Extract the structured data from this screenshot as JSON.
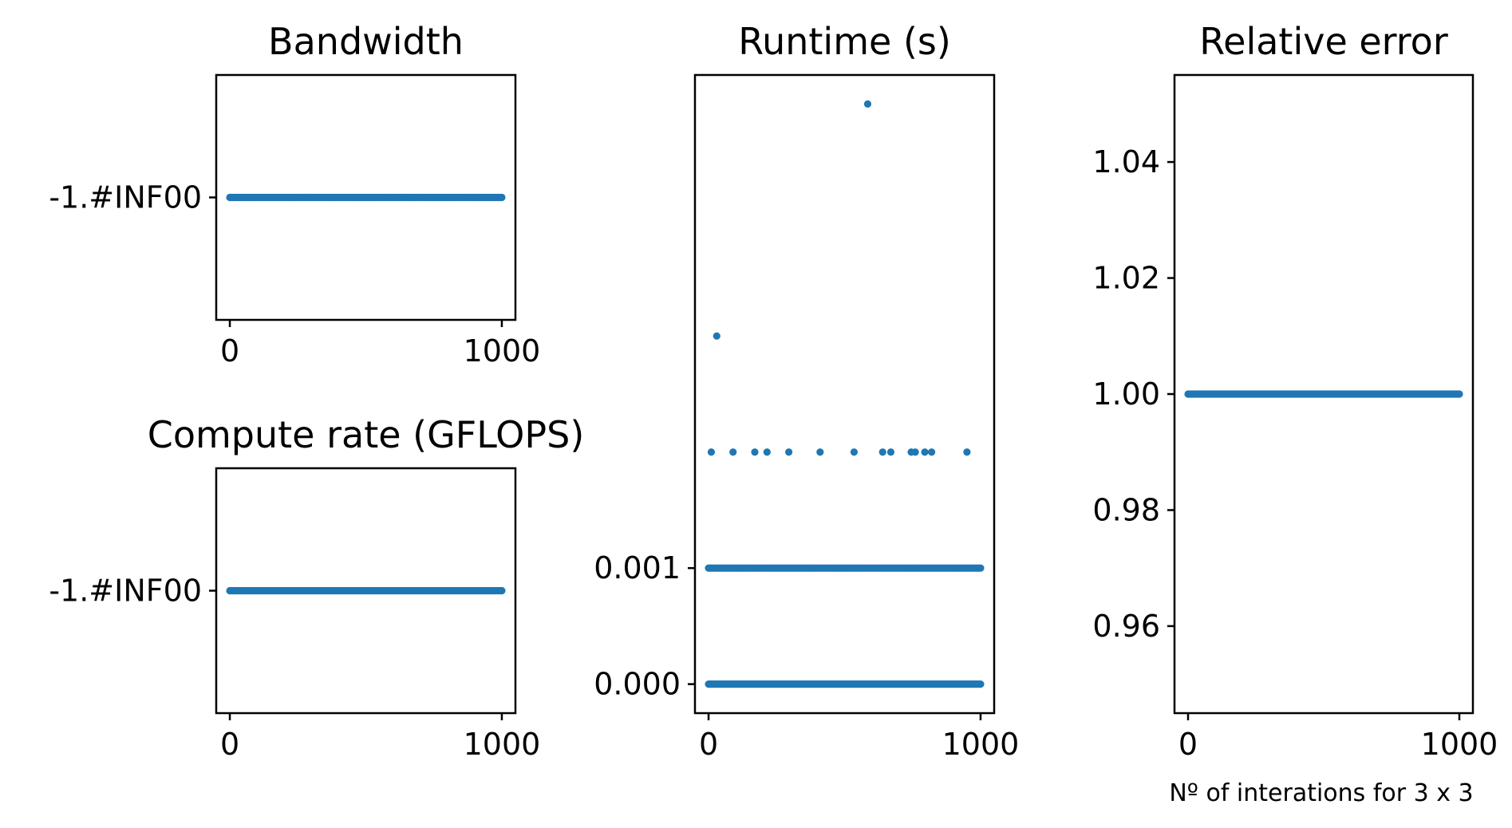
{
  "chart_data": [
    {
      "type": "scatter",
      "title": "Bandwidth",
      "xlim": [
        -50,
        1050
      ],
      "x_ticks": [
        0,
        1000
      ],
      "x_tick_labels": [
        "0",
        "1000"
      ],
      "y_tick_labels": [
        "-1.#INF00"
      ],
      "series": [
        {
          "x_range": [
            0,
            1000
          ],
          "y_label": "-1.#INF00",
          "note": "constant"
        }
      ],
      "color": "#1f77b4"
    },
    {
      "type": "scatter",
      "title": "Compute rate (GFLOPS)",
      "xlim": [
        -50,
        1050
      ],
      "x_ticks": [
        0,
        1000
      ],
      "x_tick_labels": [
        "0",
        "1000"
      ],
      "y_tick_labels": [
        "-1.#INF00"
      ],
      "series": [
        {
          "x_range": [
            0,
            1000
          ],
          "y_label": "-1.#INF00",
          "note": "constant"
        }
      ],
      "color": "#1f77b4"
    },
    {
      "type": "scatter",
      "title": "Runtime (s)",
      "xlim": [
        -50,
        1050
      ],
      "ylim": [
        -0.00025,
        0.00525
      ],
      "x_ticks": [
        0,
        1000
      ],
      "x_tick_labels": [
        "0",
        "1000"
      ],
      "y_ticks": [
        0.0,
        0.001
      ],
      "y_tick_labels": [
        "0.000",
        "0.001"
      ],
      "series": [
        {
          "x_range": [
            0,
            1000
          ],
          "y": 0.0,
          "note": "dense run of points"
        },
        {
          "x_range": [
            0,
            1000
          ],
          "y": 0.001,
          "note": "dense run of points"
        }
      ],
      "points": [
        {
          "x": 30,
          "y": 0.003
        },
        {
          "x": 585,
          "y": 0.005
        },
        {
          "x": 10,
          "y": 0.002
        },
        {
          "x": 90,
          "y": 0.002
        },
        {
          "x": 170,
          "y": 0.002
        },
        {
          "x": 215,
          "y": 0.002
        },
        {
          "x": 295,
          "y": 0.002
        },
        {
          "x": 410,
          "y": 0.002
        },
        {
          "x": 535,
          "y": 0.002
        },
        {
          "x": 640,
          "y": 0.002
        },
        {
          "x": 670,
          "y": 0.002
        },
        {
          "x": 745,
          "y": 0.002
        },
        {
          "x": 760,
          "y": 0.002
        },
        {
          "x": 795,
          "y": 0.002
        },
        {
          "x": 820,
          "y": 0.002
        },
        {
          "x": 950,
          "y": 0.002
        }
      ],
      "color": "#1f77b4"
    },
    {
      "type": "scatter",
      "title": "Relative error",
      "xlim": [
        -50,
        1050
      ],
      "ylim": [
        0.945,
        1.055
      ],
      "x_ticks": [
        0,
        1000
      ],
      "x_tick_labels": [
        "0",
        "1000"
      ],
      "y_ticks": [
        0.96,
        0.98,
        1.0,
        1.02,
        1.04
      ],
      "y_tick_labels": [
        "0.96",
        "0.98",
        "1.00",
        "1.02",
        "1.04"
      ],
      "series": [
        {
          "x_range": [
            0,
            1000
          ],
          "y": 1.0,
          "note": "constant"
        }
      ],
      "color": "#1f77b4"
    }
  ],
  "footnote": "Nº of interations for 3 x 3"
}
